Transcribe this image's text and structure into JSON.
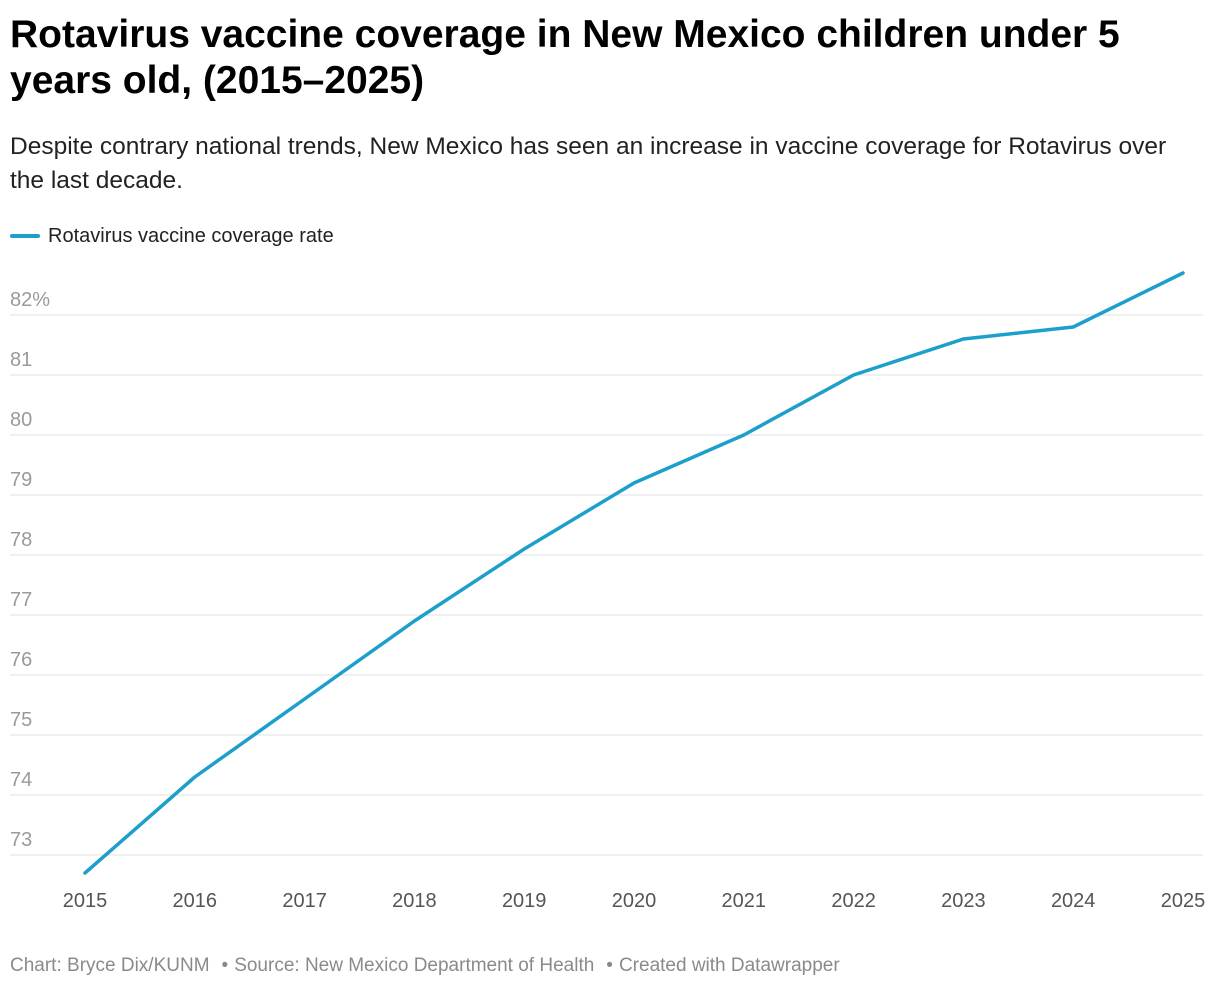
{
  "title": "Rotavirus vaccine coverage in New Mexico children under 5 years old, (2015–2025)",
  "subtitle": "Despite contrary national trends, New Mexico has seen an increase in vaccine coverage for Rotavirus over the last decade.",
  "legend": {
    "label": "Rotavirus vaccine coverage rate",
    "color": "#1d9fcb"
  },
  "footer": {
    "chart": "Chart: Bryce Dix/KUNM",
    "source": "Source: New Mexico Department of Health",
    "created": "Created with Datawrapper",
    "separator": "•"
  },
  "colors": {
    "line": "#1d9fcb",
    "grid": "#e2e2e2",
    "ytick": "#9a9a9a",
    "xtick": "#555555"
  },
  "chart_data": {
    "type": "line",
    "title": "Rotavirus vaccine coverage in New Mexico children under 5 years old, (2015–2025)",
    "xlabel": "",
    "ylabel": "",
    "x": [
      2015,
      2016,
      2017,
      2018,
      2019,
      2020,
      2021,
      2022,
      2023,
      2024,
      2025
    ],
    "x_labels": [
      "2015",
      "2016",
      "2017",
      "2018",
      "2019",
      "2020",
      "2021",
      "2022",
      "2023",
      "2024",
      "2025"
    ],
    "series": [
      {
        "name": "Rotavirus vaccine coverage rate",
        "values": [
          72.7,
          74.3,
          75.6,
          76.9,
          78.1,
          79.2,
          80.0,
          81.0,
          81.6,
          81.8,
          82.7
        ]
      }
    ],
    "ylim": [
      72.7,
      82.7
    ],
    "y_ticks": [
      73,
      74,
      75,
      76,
      77,
      78,
      79,
      80,
      81,
      82
    ],
    "y_tick_labels": [
      "73",
      "74",
      "75",
      "76",
      "77",
      "78",
      "79",
      "80",
      "81",
      "82%"
    ],
    "grid": true,
    "legend": "top-left"
  }
}
